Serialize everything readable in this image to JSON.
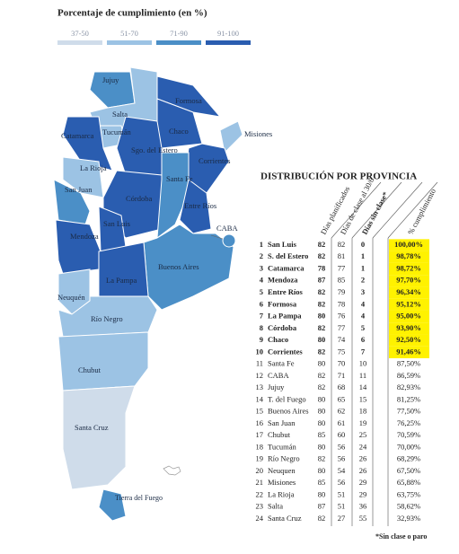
{
  "legend": {
    "title": "Porcentaje de cumplimiento (en %)",
    "items": [
      {
        "label": "37-50",
        "color": "#cfdcea"
      },
      {
        "label": "51-70",
        "color": "#9cc3e4"
      },
      {
        "label": "71-90",
        "color": "#4b8fc7"
      },
      {
        "label": "91-100",
        "color": "#2a5db0"
      }
    ]
  },
  "map": {
    "labels": [
      "Jujuy",
      "Salta",
      "Formosa",
      "Chaco",
      "Misiones",
      "Corrientes",
      "Tucumán",
      "Catamarca",
      "Sgo. del Estero",
      "La Rioja",
      "San Juan",
      "Córdoba",
      "Santa Fe",
      "Entre Ríos",
      "San Luis",
      "Mendoza",
      "CABA",
      "Buenos Aires",
      "La Pampa",
      "Neuquén",
      "Río Negro",
      "Chubut",
      "Santa Cruz",
      "Tierra del Fuego"
    ]
  },
  "table": {
    "title": "DISTRIBUCIÓN POR PROVINCIA",
    "headers": [
      "Días planificados",
      "Días de clase al 30/6",
      "Días sin clase*",
      "% cumplimiento"
    ],
    "rows": [
      [
        1,
        "San Luis",
        82,
        82,
        0,
        "100,00%"
      ],
      [
        2,
        "S. del Estero",
        82,
        81,
        1,
        "98,78%"
      ],
      [
        3,
        "Catamarca",
        78,
        77,
        1,
        "98,72%"
      ],
      [
        4,
        "Mendoza",
        87,
        85,
        2,
        "97,70%"
      ],
      [
        5,
        "Entre Ríos",
        82,
        79,
        3,
        "96,34%"
      ],
      [
        6,
        "Formosa",
        82,
        78,
        4,
        "95,12%"
      ],
      [
        7,
        "La Pampa",
        80,
        76,
        4,
        "95,00%"
      ],
      [
        8,
        "Córdoba",
        82,
        77,
        5,
        "93,90%"
      ],
      [
        9,
        "Chaco",
        80,
        74,
        6,
        "92,50%"
      ],
      [
        10,
        "Corrientes",
        82,
        75,
        7,
        "91,46%"
      ],
      [
        11,
        "Santa Fe",
        80,
        70,
        10,
        "87,50%"
      ],
      [
        12,
        "CABA",
        82,
        71,
        11,
        "86,59%"
      ],
      [
        13,
        "Jujuy",
        82,
        68,
        14,
        "82,93%"
      ],
      [
        14,
        "T. del Fuego",
        80,
        65,
        15,
        "81,25%"
      ],
      [
        15,
        "Buenos Aires",
        80,
        62,
        18,
        "77,50%"
      ],
      [
        16,
        "San Juan",
        80,
        61,
        19,
        "76,25%"
      ],
      [
        17,
        "Chubut",
        85,
        60,
        25,
        "70,59%"
      ],
      [
        18,
        "Tucumán",
        80,
        56,
        24,
        "70,00%"
      ],
      [
        19,
        "Río Negro",
        82,
        56,
        26,
        "68,29%"
      ],
      [
        20,
        "Neuquen",
        80,
        54,
        26,
        "67,50%"
      ],
      [
        21,
        "Misiones",
        85,
        56,
        29,
        "65,88%"
      ],
      [
        22,
        "La Rioja",
        80,
        51,
        29,
        "63,75%"
      ],
      [
        23,
        "Salta",
        87,
        51,
        36,
        "58,62%"
      ],
      [
        24,
        "Santa Cruz",
        82,
        27,
        55,
        "32,93%"
      ]
    ],
    "footnote": "*Sin clase o paro"
  }
}
